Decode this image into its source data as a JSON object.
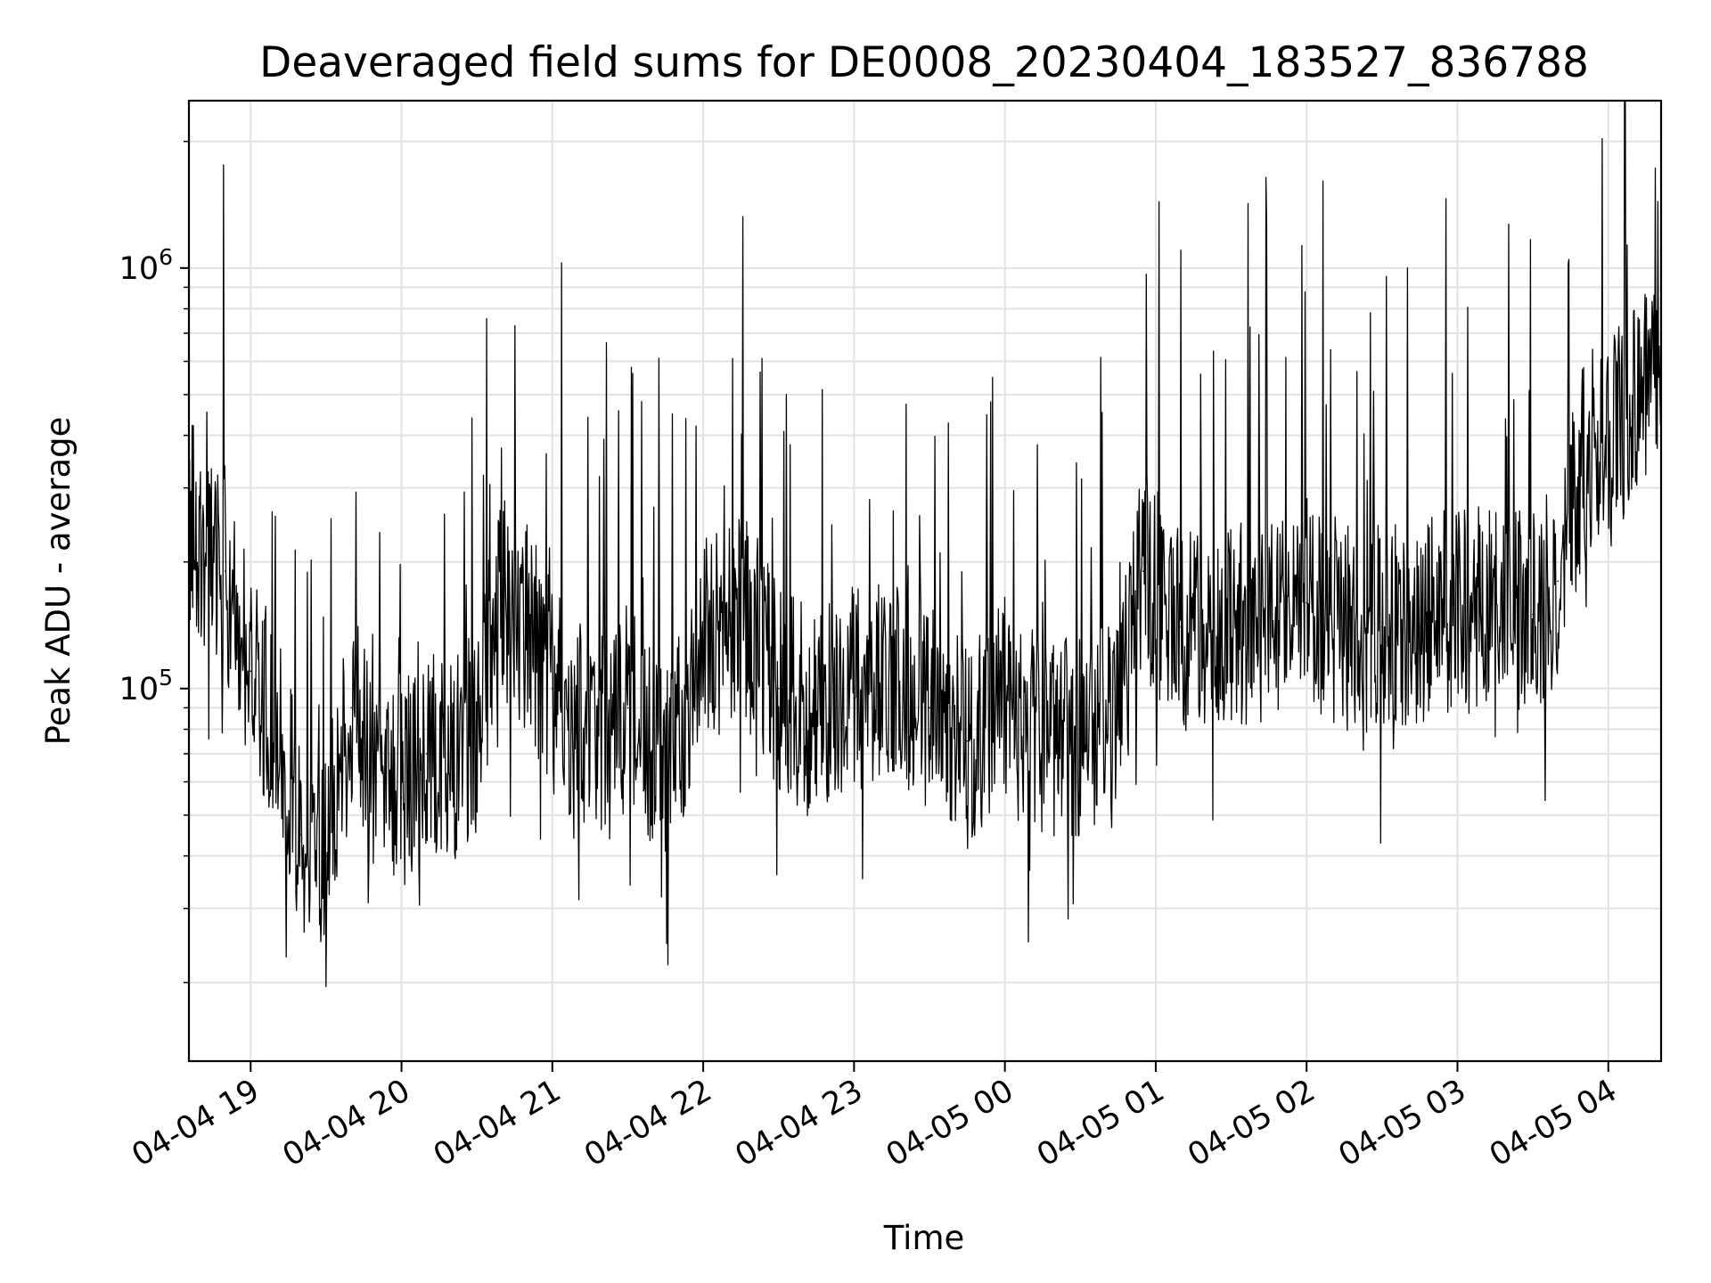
{
  "chart_data": {
    "type": "line",
    "title": "Deaveraged field sums for DE0008_20230404_183527_836788",
    "xlabel": "Time",
    "ylabel": "Peak ADU - average",
    "yscale": "log",
    "ylim": [
      13000,
      2500000
    ],
    "xlim": [
      "2023-04-04 18:35:27",
      "2023-04-05 04:21:00"
    ],
    "grid": true,
    "x_ticks": [
      "04-04 19",
      "04-04 20",
      "04-04 21",
      "04-04 22",
      "04-04 23",
      "04-05 00",
      "04-05 01",
      "04-05 02",
      "04-05 03",
      "04-05 04"
    ],
    "y_ticks": [
      {
        "base": "10",
        "exp": "5",
        "value": 100000
      },
      {
        "base": "10",
        "exp": "6",
        "value": 1000000
      }
    ],
    "series": [
      {
        "color": "#000000",
        "x": [
          "2023-04-04 18:36",
          "2023-04-04 18:50",
          "2023-04-04 19:00",
          "2023-04-04 19:10",
          "2023-04-04 19:20",
          "2023-04-04 19:30",
          "2023-04-04 19:40",
          "2023-04-04 19:50",
          "2023-04-04 20:00",
          "2023-04-04 20:10",
          "2023-04-04 20:20",
          "2023-04-04 20:30",
          "2023-04-04 20:40",
          "2023-04-04 20:50",
          "2023-04-04 21:00",
          "2023-04-04 21:15",
          "2023-04-04 21:30",
          "2023-04-04 21:45",
          "2023-04-04 22:00",
          "2023-04-04 22:15",
          "2023-04-04 22:30",
          "2023-04-04 22:45",
          "2023-04-04 23:00",
          "2023-04-04 23:15",
          "2023-04-04 23:30",
          "2023-04-04 23:45",
          "2023-04-05 00:00",
          "2023-04-05 00:15",
          "2023-04-05 00:30",
          "2023-04-05 00:45",
          "2023-04-05 00:55",
          "2023-04-05 01:10",
          "2023-04-05 01:30",
          "2023-04-05 01:45",
          "2023-04-05 02:00",
          "2023-04-05 02:15",
          "2023-04-05 02:30",
          "2023-04-05 02:45",
          "2023-04-05 03:00",
          "2023-04-05 03:15",
          "2023-04-05 03:30",
          "2023-04-05 03:40",
          "2023-04-05 03:50",
          "2023-04-05 04:00",
          "2023-04-05 04:10",
          "2023-04-05 04:20"
        ],
        "y": [
          250000,
          190000,
          110000,
          80000,
          45000,
          40000,
          90000,
          60000,
          55000,
          70000,
          65000,
          80000,
          170000,
          140000,
          100000,
          75000,
          90000,
          60000,
          130000,
          150000,
          100000,
          85000,
          100000,
          110000,
          90000,
          75000,
          95000,
          80000,
          75000,
          95000,
          190000,
          140000,
          140000,
          150000,
          160000,
          140000,
          140000,
          140000,
          155000,
          150000,
          150000,
          180000,
          350000,
          380000,
          450000,
          550000
        ]
      }
    ]
  }
}
